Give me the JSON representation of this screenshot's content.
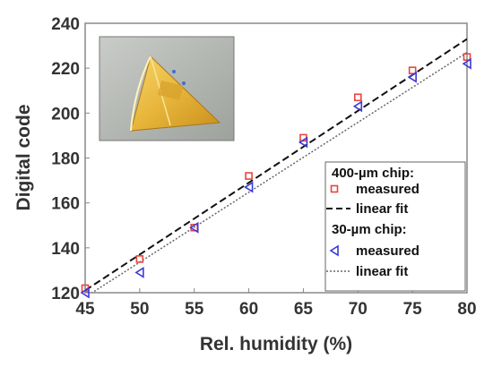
{
  "chart_data": {
    "type": "scatter",
    "title": "",
    "xlabel": "Rel. humidity (%)",
    "ylabel": "Digital code",
    "xlim": [
      45,
      80
    ],
    "ylim": [
      120,
      240
    ],
    "xticks": [
      "45",
      "50",
      "55",
      "60",
      "65",
      "70",
      "75",
      "80"
    ],
    "yticks": [
      "120",
      "140",
      "160",
      "180",
      "200",
      "220",
      "240"
    ],
    "grid": false,
    "legend_position": "bottom-right",
    "legend_groups": [
      {
        "heading": "400-µm chip:",
        "measured_label": "measured",
        "fit_label": "linear fit"
      },
      {
        "heading": "30-µm chip:",
        "measured_label": "measured",
        "fit_label": "linear fit"
      }
    ],
    "series": [
      {
        "group": 0,
        "kind": "points",
        "marker": "square",
        "color": "#e8453c",
        "x": [
          45,
          50,
          55,
          60,
          65,
          70,
          75,
          80
        ],
        "y": [
          122,
          135,
          149,
          172,
          189,
          207,
          219,
          225
        ]
      },
      {
        "group": 0,
        "kind": "line",
        "style": "dashed",
        "color": "#111111",
        "x": [
          45,
          80
        ],
        "y": [
          121,
          233
        ]
      },
      {
        "group": 1,
        "kind": "points",
        "marker": "triangle-left",
        "color": "#3b3bd8",
        "x": [
          45,
          50,
          55,
          60,
          65,
          70,
          75,
          80
        ],
        "y": [
          120,
          129,
          149,
          167,
          187,
          203,
          216,
          222
        ]
      },
      {
        "group": 1,
        "kind": "line",
        "style": "dotted",
        "color": "#666666",
        "x": [
          45,
          80
        ],
        "y": [
          118,
          227
        ]
      }
    ]
  },
  "inset": {
    "description_icon": "chip-photo-inset"
  }
}
